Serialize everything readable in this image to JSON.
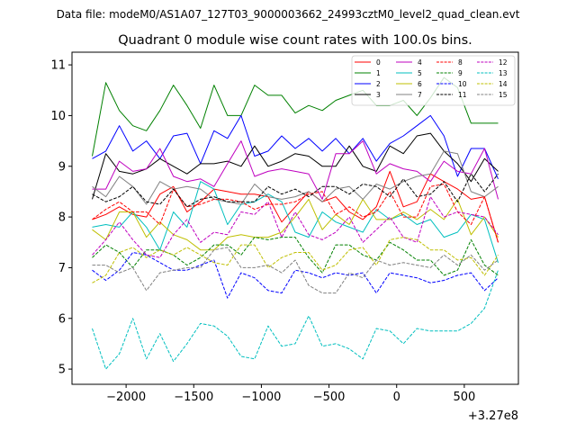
{
  "chart_data": {
    "type": "line",
    "suptitle": "Data file: modeM0/AS1A07_127T03_9000003662_24993cztM0_level2_quad_clean.evt",
    "title": "Quadrant 0 module wise count rates with 100.0s bins.",
    "xlabel": "",
    "ylabel": "",
    "x_offset_label": "+3.27e8",
    "xlim": [
      -2400,
      900
    ],
    "ylim": [
      4.7,
      11.25
    ],
    "x_ticks": [
      -2000,
      -1500,
      -1000,
      -500,
      0,
      500
    ],
    "x_tick_labels": [
      "−2000",
      "−1500",
      "−1000",
      "−500",
      "0",
      "500"
    ],
    "y_ticks": [
      5,
      6,
      7,
      8,
      9,
      10,
      11
    ],
    "y_tick_labels": [
      "5",
      "6",
      "7",
      "8",
      "9",
      "10",
      "11"
    ],
    "legend_location": "top-right",
    "x": [
      -2250,
      -2150,
      -2050,
      -1950,
      -1850,
      -1750,
      -1650,
      -1550,
      -1450,
      -1350,
      -1250,
      -1150,
      -1050,
      -950,
      -850,
      -750,
      -650,
      -550,
      -450,
      -350,
      -250,
      -150,
      -50,
      50,
      150,
      250,
      350,
      450,
      550,
      650,
      750
    ],
    "series": [
      {
        "name": "0",
        "color": "#ff0000",
        "dash": "solid",
        "values": [
          7.95,
          8.05,
          8.2,
          8.05,
          8.0,
          8.45,
          8.6,
          8.1,
          8.3,
          8.55,
          8.5,
          8.45,
          8.45,
          8.4,
          7.9,
          8.2,
          8.5,
          8.3,
          8.4,
          8.1,
          7.95,
          8.2,
          8.9,
          8.2,
          8.3,
          8.85,
          8.7,
          8.55,
          8.35,
          8.4,
          7.5
        ]
      },
      {
        "name": "1",
        "color": "#008000",
        "dash": "solid",
        "values": [
          9.2,
          10.65,
          10.1,
          9.8,
          9.7,
          10.1,
          10.6,
          10.2,
          9.75,
          10.6,
          10.0,
          10.0,
          10.6,
          10.4,
          10.4,
          10.05,
          10.2,
          10.1,
          10.3,
          10.4,
          10.5,
          10.2,
          10.2,
          10.3,
          10.0,
          10.35,
          10.75,
          10.55,
          9.85,
          9.85,
          9.85
        ]
      },
      {
        "name": "2",
        "color": "#0000ff",
        "dash": "solid",
        "values": [
          9.15,
          9.3,
          9.8,
          9.3,
          9.5,
          9.15,
          9.6,
          9.65,
          9.05,
          9.7,
          9.55,
          10.0,
          9.2,
          9.3,
          9.6,
          9.35,
          9.55,
          9.3,
          9.55,
          9.25,
          9.55,
          9.1,
          9.45,
          9.6,
          9.8,
          10.0,
          9.6,
          8.8,
          9.35,
          9.35,
          8.75
        ]
      },
      {
        "name": "3",
        "color": "#000000",
        "dash": "solid",
        "values": [
          8.35,
          9.25,
          8.9,
          8.85,
          8.95,
          9.15,
          9.0,
          8.85,
          9.05,
          9.05,
          9.1,
          9.0,
          9.4,
          9.0,
          9.1,
          9.25,
          9.2,
          9.0,
          9.0,
          9.4,
          9.0,
          8.9,
          9.4,
          9.25,
          9.6,
          9.65,
          9.3,
          9.05,
          8.7,
          9.15,
          8.9
        ]
      },
      {
        "name": "4",
        "color": "#bf00bf",
        "dash": "solid",
        "values": [
          8.55,
          8.55,
          9.1,
          8.9,
          8.95,
          9.35,
          8.8,
          8.7,
          8.75,
          8.6,
          9.05,
          9.5,
          8.8,
          8.9,
          8.95,
          8.9,
          8.85,
          8.35,
          9.25,
          9.25,
          9.5,
          8.85,
          9.05,
          8.95,
          8.9,
          8.7,
          9.1,
          8.9,
          8.85,
          9.35,
          8.35
        ]
      },
      {
        "name": "5",
        "color": "#00bfbf",
        "dash": "solid",
        "values": [
          7.8,
          7.85,
          7.8,
          8.1,
          7.8,
          7.35,
          8.1,
          7.8,
          8.7,
          8.55,
          7.85,
          8.25,
          8.3,
          8.45,
          8.3,
          7.7,
          7.6,
          8.1,
          7.9,
          7.8,
          7.7,
          8.15,
          7.95,
          8.05,
          7.85,
          7.95,
          7.6,
          7.7,
          8.05,
          7.95,
          7.1
        ]
      },
      {
        "name": "6",
        "color": "#bfbf00",
        "dash": "solid",
        "values": [
          7.75,
          7.55,
          8.1,
          8.1,
          7.6,
          7.9,
          7.65,
          7.55,
          7.35,
          7.35,
          7.6,
          7.65,
          7.6,
          7.6,
          7.7,
          8.0,
          8.35,
          7.75,
          8.05,
          7.85,
          8.35,
          7.95,
          7.95,
          8.1,
          7.95,
          8.15,
          7.95,
          8.35,
          7.65,
          8.0,
          7.6
        ]
      },
      {
        "name": "7",
        "color": "#808080",
        "dash": "solid",
        "values": [
          8.6,
          8.4,
          8.8,
          8.6,
          8.25,
          8.7,
          8.55,
          8.6,
          8.55,
          8.35,
          8.3,
          8.25,
          8.65,
          8.4,
          8.35,
          8.4,
          8.5,
          8.3,
          8.55,
          8.6,
          8.35,
          8.65,
          8.55,
          8.7,
          8.8,
          8.85,
          9.3,
          9.25,
          8.5,
          8.4,
          8.6
        ]
      },
      {
        "name": "8",
        "color": "#ff0000",
        "dash": "dashed",
        "values": [
          7.95,
          8.15,
          8.3,
          8.1,
          8.1,
          7.85,
          8.55,
          8.2,
          8.25,
          8.35,
          8.35,
          8.3,
          8.15,
          8.25,
          8.25,
          8.3,
          8.45,
          8.5,
          8.05,
          8.2,
          8.0,
          8.1,
          8.5,
          8.0,
          8.0,
          8.6,
          8.65,
          8.1,
          7.85,
          8.4,
          7.5
        ]
      },
      {
        "name": "9",
        "color": "#008000",
        "dash": "dashed",
        "values": [
          7.2,
          7.45,
          7.3,
          7.0,
          7.35,
          7.35,
          7.25,
          7.05,
          7.2,
          7.45,
          7.45,
          7.25,
          7.6,
          7.55,
          7.6,
          7.6,
          7.2,
          6.9,
          7.45,
          7.45,
          7.25,
          7.15,
          7.5,
          7.35,
          7.15,
          7.15,
          6.85,
          6.95,
          7.55,
          7.05,
          6.85
        ]
      },
      {
        "name": "10",
        "color": "#0000ff",
        "dash": "dashed",
        "values": [
          6.95,
          6.75,
          6.95,
          7.3,
          7.25,
          7.1,
          6.95,
          6.95,
          7.05,
          7.15,
          6.4,
          6.9,
          6.8,
          6.55,
          6.5,
          6.95,
          6.9,
          6.8,
          6.9,
          6.85,
          6.9,
          6.5,
          6.9,
          6.85,
          6.8,
          6.7,
          6.75,
          6.85,
          6.9,
          6.55,
          6.8
        ]
      },
      {
        "name": "11",
        "color": "#000000",
        "dash": "dashed",
        "values": [
          8.45,
          8.3,
          8.4,
          8.6,
          8.3,
          8.25,
          8.55,
          8.2,
          8.35,
          8.4,
          8.3,
          8.3,
          8.3,
          8.6,
          8.45,
          8.55,
          8.4,
          8.6,
          8.6,
          8.45,
          8.65,
          8.6,
          8.4,
          8.75,
          8.4,
          8.45,
          8.7,
          8.3,
          8.85,
          8.5,
          8.85
        ]
      },
      {
        "name": "12",
        "color": "#bf00bf",
        "dash": "dashed",
        "values": [
          7.25,
          7.55,
          7.9,
          7.55,
          7.25,
          7.2,
          7.65,
          7.95,
          7.5,
          7.7,
          7.65,
          8.1,
          8.05,
          8.3,
          7.6,
          8.1,
          7.65,
          7.55,
          7.7,
          8.0,
          7.5,
          7.75,
          8.0,
          7.6,
          7.5,
          8.4,
          8.0,
          8.1,
          8.05,
          8.0,
          7.65
        ]
      },
      {
        "name": "13",
        "color": "#00bfbf",
        "dash": "dashed",
        "values": [
          5.8,
          5.0,
          5.3,
          6.0,
          5.2,
          5.7,
          5.15,
          5.5,
          5.9,
          5.85,
          5.65,
          5.25,
          5.2,
          5.85,
          5.45,
          5.5,
          6.05,
          5.45,
          5.5,
          5.4,
          5.2,
          5.8,
          5.75,
          5.5,
          5.8,
          5.75,
          5.75,
          5.75,
          5.9,
          6.2,
          6.95
        ]
      },
      {
        "name": "14",
        "color": "#bfbf00",
        "dash": "dashed",
        "values": [
          6.7,
          6.85,
          7.3,
          7.4,
          7.2,
          7.35,
          7.25,
          7.4,
          7.25,
          7.1,
          7.05,
          7.45,
          7.45,
          7.0,
          7.2,
          7.3,
          7.3,
          6.95,
          7.05,
          7.35,
          7.4,
          7.05,
          7.55,
          7.6,
          7.55,
          7.35,
          7.35,
          7.15,
          7.2,
          6.85,
          7.25
        ]
      },
      {
        "name": "15",
        "color": "#808080",
        "dash": "dashed",
        "values": [
          7.05,
          7.05,
          6.9,
          7.0,
          6.55,
          6.9,
          6.95,
          7.0,
          7.0,
          7.35,
          7.4,
          7.0,
          7.0,
          7.05,
          6.9,
          7.15,
          6.65,
          6.5,
          6.5,
          6.9,
          6.8,
          7.15,
          7.05,
          7.1,
          7.05,
          7.0,
          7.25,
          7.05,
          7.25,
          6.95,
          7.15
        ]
      }
    ]
  }
}
